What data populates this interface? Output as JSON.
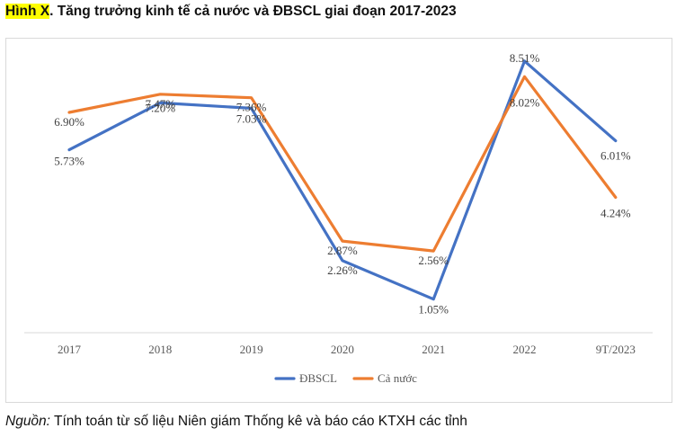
{
  "figure": {
    "title_prefix": "Hình X",
    "title_text": ". Tăng trưởng kinh tế cả nước và ĐBSCL giai đoạn 2017-2023",
    "source_label": "Nguồn:",
    "source_text": " Tính toán từ số liệu Niên giám Thống kê và báo cáo KTXH các tỉnh"
  },
  "chart_data": {
    "type": "line",
    "title": "Tăng trưởng kinh tế cả nước và ĐBSCL giai đoạn 2017-2023",
    "xlabel": "",
    "ylabel": "",
    "categories": [
      "2017",
      "2018",
      "2019",
      "2020",
      "2021",
      "2022",
      "9T/2023"
    ],
    "ylim": [
      0,
      9
    ],
    "grid": false,
    "legend_position": "bottom",
    "series": [
      {
        "name": "ĐBSCL",
        "color": "#4472c4",
        "values": [
          5.73,
          7.2,
          7.03,
          2.26,
          1.05,
          8.51,
          6.01
        ],
        "labels": [
          "5.73%",
          "7.20%",
          "7.03%",
          "2.26%",
          "1.05%",
          "8.51%",
          "6.01%"
        ]
      },
      {
        "name": "Cả nước",
        "color": "#ed7d31",
        "values": [
          6.9,
          7.47,
          7.36,
          2.87,
          2.56,
          8.02,
          4.24
        ],
        "labels": [
          "6.90%",
          "7.47%",
          "7.36%",
          "2.87%",
          "2.56%",
          "8.02%",
          "4.24%"
        ]
      }
    ]
  }
}
